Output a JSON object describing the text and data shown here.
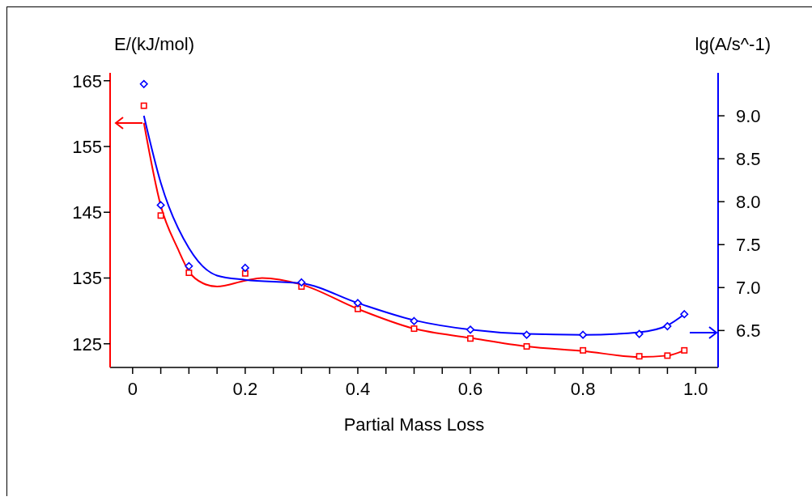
{
  "chart_data": {
    "type": "scatter",
    "xlabel": "Partial Mass Loss",
    "ylabel": "E/(kJ/mol)",
    "y2label": "lg(A/s^-1)",
    "xlim": [
      -0.04,
      1.04
    ],
    "xticks": [
      0,
      {
        "value": 0.05,
        "label": null
      },
      {
        "value": 0.1,
        "label": null
      },
      {
        "value": 0.15,
        "label": null
      },
      0.2,
      {
        "value": 0.25,
        "label": null
      },
      {
        "value": 0.3,
        "label": null
      },
      {
        "value": 0.35,
        "label": null
      },
      0.4,
      {
        "value": 0.45,
        "label": null
      },
      {
        "value": 0.5,
        "label": null
      },
      {
        "value": 0.55,
        "label": null
      },
      0.6,
      {
        "value": 0.65,
        "label": null
      },
      {
        "value": 0.7,
        "label": null
      },
      {
        "value": 0.75,
        "label": null
      },
      0.8,
      {
        "value": 0.85,
        "label": null
      },
      {
        "value": 0.9,
        "label": null
      },
      {
        "value": 0.95,
        "label": null
      },
      {
        "value": 1,
        "label": "1.0"
      }
    ],
    "ylim": [
      121.4,
      166.2
    ],
    "yticks": [
      125,
      135,
      145,
      155,
      165
    ],
    "y2lim": [
      6.07,
      9.5
    ],
    "y2ticks": [
      {
        "value": 6.5,
        "label": "6.5"
      },
      {
        "value": 7,
        "label": "7.0"
      },
      {
        "value": 7.5,
        "label": "7.5"
      },
      {
        "value": 8,
        "label": "8.0"
      },
      {
        "value": 8.5,
        "label": "8.5"
      },
      {
        "value": 9,
        "label": "9.0"
      }
    ],
    "grid": false,
    "legend": false,
    "series": [
      {
        "marker": "square",
        "color": "#ff0000",
        "x": [
          0.02,
          0.05,
          0.1,
          0.2,
          0.3,
          0.4,
          0.5,
          0.6,
          0.7,
          0.8,
          0.9,
          0.95,
          0.98
        ],
        "values": [
          161.2,
          144.5,
          135.8,
          135.7,
          133.7,
          130.3,
          127.3,
          125.8,
          124.6,
          124.0,
          123.1,
          123.2,
          124.0
        ]
      },
      {
        "marker": "diamond",
        "axis": "y2",
        "color": "#0000ff",
        "x": [
          0.02,
          0.05,
          0.1,
          0.2,
          0.3,
          0.4,
          0.5,
          0.6,
          0.7,
          0.8,
          0.9,
          0.95,
          0.98
        ],
        "values": [
          9.37,
          7.96,
          7.25,
          7.23,
          7.06,
          6.82,
          6.61,
          6.51,
          6.45,
          6.45,
          6.46,
          6.55,
          6.69
        ]
      },
      {
        "type": "line",
        "marker": "none",
        "color": "#ff0000",
        "x": [
          0.02,
          0.05,
          0.08,
          0.1,
          0.125,
          0.15,
          0.2,
          0.23,
          0.3,
          0.4,
          0.5,
          0.6,
          0.7,
          0.8,
          0.9,
          0.95,
          0.98
        ],
        "values": [
          158.6,
          146,
          139.5,
          136,
          134.2,
          133.7,
          134.6,
          135.0,
          134.0,
          130.3,
          127.3,
          125.9,
          124.6,
          123.9,
          123.0,
          123.2,
          124.0
        ]
      },
      {
        "type": "line",
        "marker": "none",
        "axis": "y2",
        "color": "#0000ff",
        "x": [
          0.02,
          0.05,
          0.1,
          0.15,
          0.2,
          0.3,
          0.4,
          0.5,
          0.6,
          0.7,
          0.8,
          0.9,
          0.95,
          0.98
        ],
        "values": [
          9.0,
          8.22,
          7.46,
          7.14,
          7.09,
          7.05,
          6.82,
          6.62,
          6.51,
          6.46,
          6.45,
          6.48,
          6.56,
          6.69
        ]
      }
    ]
  }
}
